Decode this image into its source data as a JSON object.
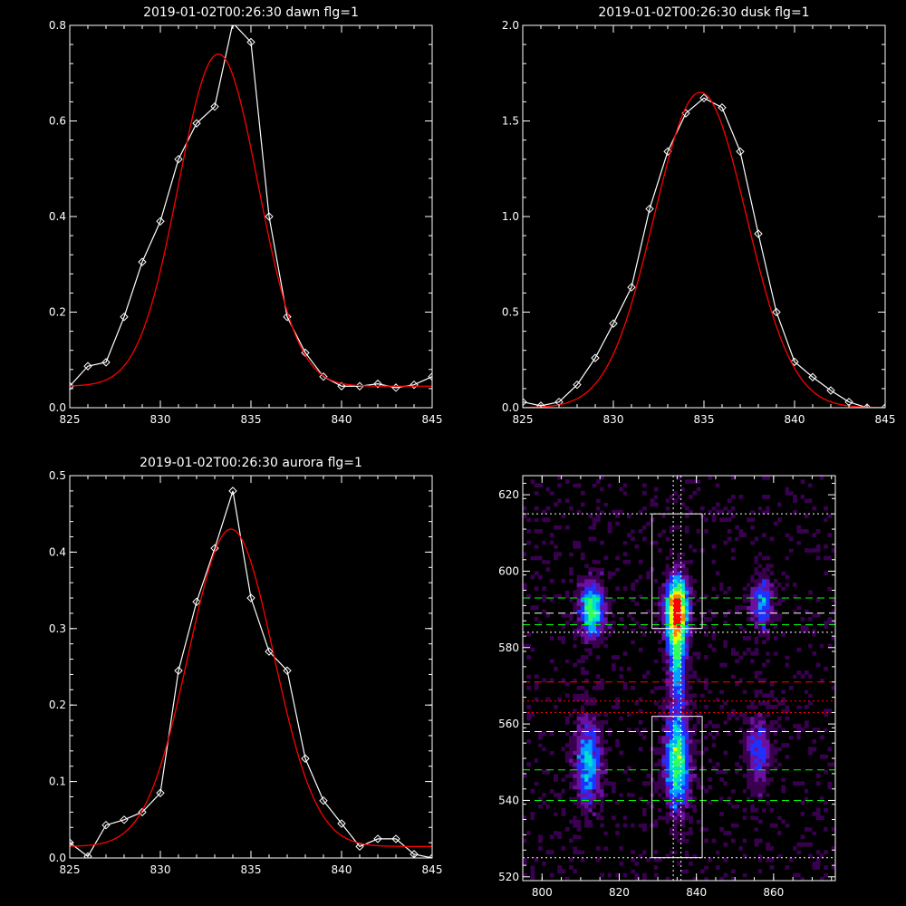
{
  "chart_data": [
    {
      "type": "line",
      "title": "2019-01-02T00:26:30 dawn flg=1",
      "xlim": [
        825,
        845
      ],
      "ylim": [
        0,
        0.8
      ],
      "xticks": [
        825,
        830,
        835,
        840,
        845
      ],
      "xtick_labels": [
        "825",
        "830",
        "835",
        "840",
        "845"
      ],
      "yticks": [
        0,
        0.2,
        0.4,
        0.6,
        0.8
      ],
      "ytick_labels": [
        "0.0",
        "0.2",
        "0.4",
        "0.6",
        "0.8"
      ],
      "series": [
        {
          "role": "data",
          "color": "#ffffff",
          "marker": "diamond",
          "x": [
            825,
            826,
            827,
            828,
            829,
            830,
            831,
            832,
            833,
            834,
            835,
            836,
            837,
            838,
            839,
            840,
            841,
            842,
            843,
            844,
            845
          ],
          "y": [
            0.045,
            0.087,
            0.095,
            0.19,
            0.305,
            0.39,
            0.52,
            0.595,
            0.63,
            0.805,
            0.765,
            0.4,
            0.19,
            0.115,
            0.065,
            0.045,
            0.045,
            0.05,
            0.042,
            0.048,
            0.065
          ]
        },
        {
          "role": "fit",
          "color": "#ff0000",
          "marker": "none",
          "gauss": {
            "amp": 0.695,
            "center": 833.2,
            "sigma": 2.2,
            "base": 0.045
          }
        }
      ]
    },
    {
      "type": "line",
      "title": "2019-01-02T00:26:30 dusk flg=1",
      "xlim": [
        825,
        845
      ],
      "ylim": [
        0,
        2.0
      ],
      "xticks": [
        825,
        830,
        835,
        840,
        845
      ],
      "xtick_labels": [
        "825",
        "830",
        "835",
        "840",
        "845"
      ],
      "yticks": [
        0,
        0.5,
        1.0,
        1.5,
        2.0
      ],
      "ytick_labels": [
        "0.0",
        "0.5",
        "1.0",
        "1.5",
        "2.0"
      ],
      "series": [
        {
          "role": "data",
          "color": "#ffffff",
          "marker": "diamond",
          "x": [
            825,
            826,
            827,
            828,
            829,
            830,
            831,
            832,
            833,
            834,
            835,
            836,
            837,
            838,
            839,
            840,
            841,
            842,
            843,
            844,
            845
          ],
          "y": [
            0.03,
            0.01,
            0.03,
            0.12,
            0.26,
            0.44,
            0.63,
            1.04,
            1.34,
            1.54,
            1.62,
            1.57,
            1.34,
            0.91,
            0.5,
            0.24,
            0.16,
            0.09,
            0.03,
            0.0,
            0.0
          ]
        },
        {
          "role": "fit",
          "color": "#ff0000",
          "marker": "none",
          "gauss": {
            "amp": 1.65,
            "center": 834.8,
            "sigma": 2.55,
            "base": 0.0
          }
        }
      ]
    },
    {
      "type": "line",
      "title": "2019-01-02T00:26:30 aurora flg=1",
      "xlim": [
        825,
        845
      ],
      "ylim": [
        0,
        0.5
      ],
      "xticks": [
        825,
        830,
        835,
        840,
        845
      ],
      "xtick_labels": [
        "825",
        "830",
        "835",
        "840",
        "845"
      ],
      "yticks": [
        0,
        0.1,
        0.2,
        0.3,
        0.4,
        0.5
      ],
      "ytick_labels": [
        "0.0",
        "0.1",
        "0.2",
        "0.3",
        "0.4",
        "0.5"
      ],
      "series": [
        {
          "role": "data",
          "color": "#ffffff",
          "marker": "diamond",
          "x": [
            825,
            826,
            827,
            828,
            829,
            830,
            831,
            832,
            833,
            834,
            835,
            836,
            837,
            838,
            839,
            840,
            841,
            842,
            843,
            844,
            845
          ],
          "y": [
            0.02,
            0.002,
            0.043,
            0.05,
            0.06,
            0.085,
            0.245,
            0.335,
            0.405,
            0.48,
            0.34,
            0.27,
            0.245,
            0.13,
            0.075,
            0.045,
            0.015,
            0.025,
            0.025,
            0.005,
            0.0
          ]
        },
        {
          "role": "fit",
          "color": "#ff0000",
          "marker": "none",
          "gauss": {
            "amp": 0.415,
            "center": 833.9,
            "sigma": 2.35,
            "base": 0.015
          }
        }
      ]
    },
    {
      "type": "heatmap",
      "title": "",
      "xlim": [
        795,
        876
      ],
      "ylim": [
        519,
        625
      ],
      "xticks": [
        800,
        820,
        840,
        860
      ],
      "xtick_labels": [
        "800",
        "820",
        "840",
        "860"
      ],
      "yticks": [
        520,
        540,
        560,
        580,
        600,
        620
      ],
      "ytick_labels": [
        "520",
        "540",
        "560",
        "580",
        "600",
        "620"
      ],
      "colormap": [
        "#000000",
        "#3a0050",
        "#6a10a0",
        "#2030ff",
        "#00a0ff",
        "#00e0d0",
        "#30ff60",
        "#e0ff00",
        "#ff8000",
        "#ff0000"
      ],
      "blobs": [
        {
          "x": 813,
          "y": 590,
          "sx": 2.2,
          "sy": 5,
          "amp": 0.62
        },
        {
          "x": 812,
          "y": 550,
          "sx": 2.4,
          "sy": 8,
          "amp": 0.45
        },
        {
          "x": 835,
          "y": 590,
          "sx": 2.0,
          "sy": 6,
          "amp": 0.95
        },
        {
          "x": 835,
          "y": 576,
          "sx": 1.6,
          "sy": 8,
          "amp": 0.45
        },
        {
          "x": 835,
          "y": 550,
          "sx": 2.2,
          "sy": 9,
          "amp": 0.62
        },
        {
          "x": 857,
          "y": 592,
          "sx": 2.0,
          "sy": 5,
          "amp": 0.4
        },
        {
          "x": 856,
          "y": 553,
          "sx": 2.2,
          "sy": 7,
          "amp": 0.3
        }
      ],
      "boxes": [
        {
          "x0": 828.5,
          "x1": 841.5,
          "y0": 585,
          "y1": 615
        },
        {
          "x0": 828.5,
          "x1": 841.5,
          "y0": 525,
          "y1": 562
        }
      ],
      "hlines": [
        {
          "y": 615,
          "color": "#ffffff",
          "style": "dotted"
        },
        {
          "y": 593,
          "color": "#00ff00",
          "style": "dashed"
        },
        {
          "y": 589,
          "color": "#ffffff",
          "style": "dashed"
        },
        {
          "y": 586,
          "color": "#00ff00",
          "style": "dashed"
        },
        {
          "y": 584,
          "color": "#ffffff",
          "style": "dotted"
        },
        {
          "y": 571,
          "color": "#ff0000",
          "style": "dashed"
        },
        {
          "y": 566,
          "color": "#ff0000",
          "style": "dotted"
        },
        {
          "y": 563,
          "color": "#ff0000",
          "style": "dotted"
        },
        {
          "y": 558,
          "color": "#ffffff",
          "style": "dashed"
        },
        {
          "y": 548,
          "color": "#00ff00",
          "style": "dashed"
        },
        {
          "y": 540,
          "color": "#00ff00",
          "style": "dashed"
        },
        {
          "y": 525,
          "color": "#ffffff",
          "style": "dotted"
        }
      ],
      "vlines": [
        {
          "x": 834,
          "color": "#ffffff",
          "style": "dotted"
        },
        {
          "x": 836,
          "color": "#ffffff",
          "style": "dotted"
        }
      ]
    }
  ]
}
